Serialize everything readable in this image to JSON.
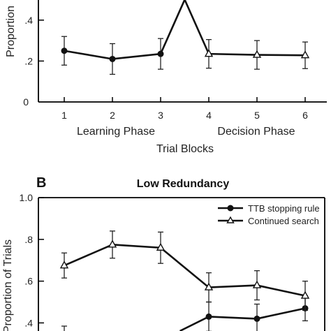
{
  "chart_data": [
    {
      "type": "line",
      "panel": "",
      "title": "",
      "ylabel": "Proportion",
      "xlabel": "Trial Blocks",
      "phase_labels": [
        "Learning Phase",
        "Decision Phase"
      ],
      "x_ticks": [
        "1",
        "2",
        "3",
        "4",
        "5",
        "6"
      ],
      "y_ticks": [
        ".2",
        ".4"
      ],
      "y_zero_label": "0",
      "ylim": [
        0,
        0.5
      ],
      "series": [
        {
          "marker": "triangle",
          "x": [
            1,
            2,
            3,
            4,
            5,
            6
          ],
          "y": [
            0.25,
            0.21,
            0.235,
            0.235,
            0.23,
            0.228
          ],
          "err": [
            0.07,
            0.075,
            0.075,
            0.07,
            0.07,
            0.065
          ]
        }
      ],
      "peak_point": {
        "x": 3.5,
        "y": 0.5
      }
    },
    {
      "type": "line",
      "panel": "B",
      "title": "Low Redundancy",
      "ylabel": "Proportion of Trials",
      "y_ticks": [
        "1.0",
        ".8",
        ".6",
        ".4"
      ],
      "ylim": [
        0.4,
        1.0
      ],
      "legend_position": "top-right",
      "series": [
        {
          "name": "TTB stopping rule",
          "marker": "circle",
          "x": [
            4,
            5,
            6
          ],
          "y": [
            0.43,
            0.42,
            0.47
          ],
          "err": [
            0.07,
            0.07,
            0.06
          ]
        },
        {
          "name": "Continued search",
          "marker": "triangle",
          "x": [
            1,
            2,
            3,
            4,
            5,
            6
          ],
          "y": [
            0.675,
            0.775,
            0.76,
            0.57,
            0.58,
            0.53
          ],
          "err": [
            0.06,
            0.065,
            0.075,
            0.07,
            0.07,
            0.07
          ]
        }
      ]
    }
  ]
}
